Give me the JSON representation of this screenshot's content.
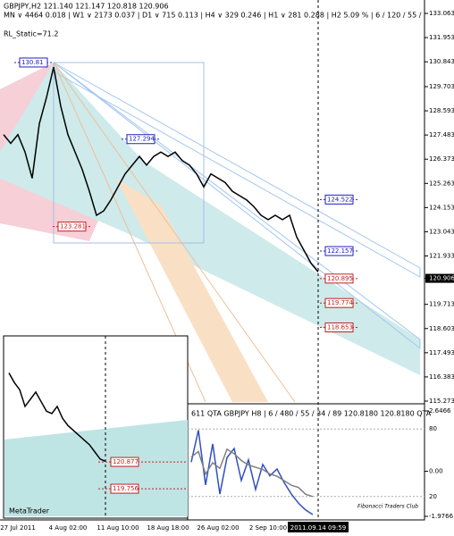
{
  "chart_data": [
    {
      "type": "line",
      "title": "GBPJPY,H2  121.140 121.147 120.818 120.906",
      "subtitle": "MN ∨ 4464  0.018 | W1 ∨ 2173  0.037 | D1 ∨ 715  0.113 | H4 ∨ 329  0.246 | H1 ∨ 281  0.288 | H2  5.09 % | 6 / 120 / 55 /",
      "annotation": "RL_Static=71.2",
      "categories": [
        null,
        null,
        "27 Jul 2011",
        null,
        null,
        null,
        null,
        null,
        null,
        "4 Aug 02:00",
        null,
        null,
        null,
        null,
        null,
        null,
        "11 Aug 10:00",
        null,
        null,
        null,
        null,
        null,
        null,
        "18 Aug 18:00",
        null,
        null,
        null,
        null,
        null,
        null,
        "26 Aug 02:00",
        null,
        null,
        null,
        null,
        null,
        null,
        "2 Sep 10:00",
        null,
        null,
        null,
        null,
        null,
        null,
        "2011.09.14 09:59"
      ],
      "series": [
        {
          "name": "GBPJPY",
          "color": "#000000",
          "values": [
            127.5,
            127.1,
            127.5,
            126.7,
            125.5,
            128.0,
            129.2,
            130.6,
            128.8,
            127.5,
            126.7,
            125.9,
            124.9,
            123.8,
            124.0,
            124.5,
            125.1,
            125.7,
            126.1,
            126.5,
            126.1,
            126.5,
            126.7,
            126.5,
            126.7,
            126.3,
            126.1,
            125.7,
            125.1,
            125.7,
            125.5,
            125.3,
            124.9,
            124.7,
            124.5,
            124.2,
            123.8,
            123.6,
            123.8,
            123.6,
            123.8,
            122.8,
            122.2,
            121.6,
            121.2
          ]
        }
      ],
      "levels": [
        {
          "value": 130.81,
          "color": "#2020c0"
        },
        {
          "value": 127.294,
          "color": "#2020c0"
        },
        {
          "value": 123.281,
          "color": "#c02020"
        },
        {
          "value": 124.522,
          "color": "#2020c0"
        },
        {
          "value": 122.157,
          "color": "#2020c0"
        },
        {
          "value": 120.895,
          "color": "#c02020"
        },
        {
          "value": 119.774,
          "color": "#c02020"
        },
        {
          "value": 118.653,
          "color": "#c02020"
        }
      ],
      "ylim": [
        115.273,
        133.063
      ],
      "yticks": [
        133.063,
        131.953,
        130.843,
        129.703,
        128.593,
        127.483,
        126.373,
        125.263,
        124.153,
        123.043,
        121.933,
        120.906,
        119.713,
        118.603,
        117.493,
        116.383,
        115.273
      ]
    },
    {
      "type": "line",
      "annotation": "MetaTrader",
      "series": [
        {
          "name": "GBPJPY",
          "color": "#000000",
          "values": [
            124.6,
            124.2,
            123.9,
            123.2,
            123.5,
            123.8,
            123.4,
            123.0,
            122.9,
            123.2,
            122.7,
            122.4,
            122.2,
            122.0,
            121.8,
            121.6,
            121.3,
            121.0,
            120.9
          ]
        }
      ],
      "levels": [
        {
          "value": 120.877,
          "color": "#c02020"
        },
        {
          "value": 119.756,
          "color": "#c02020"
        }
      ],
      "ylim": [
        118.6,
        126.0
      ]
    },
    {
      "type": "line",
      "title": "611  QTA  GBPJPY H8 | 6 / 480 / 55 / 34 / 89  120.8180  120.8180  QTA",
      "annotation": "Fibonacci Traders Club",
      "series": [
        {
          "name": "QTA",
          "color": "#3050c0",
          "values": [
            0.4,
            1.8,
            -0.6,
            1.2,
            -1.0,
            0.6,
            1.0,
            -0.4,
            0.5,
            -0.8,
            0.3,
            -0.2,
            0.1,
            -0.5,
            -1.0,
            -1.4,
            -1.7,
            -1.9
          ]
        },
        {
          "name": "RL",
          "color": "#808080",
          "axis": "y2",
          "values": [
            55,
            60,
            40,
            50,
            45,
            62,
            58,
            52,
            48,
            46,
            44,
            40,
            38,
            34,
            30,
            28,
            22,
            20
          ]
        }
      ],
      "ylim": [
        -1.9766,
        2.6466
      ],
      "yticks": [
        2.6466,
        {
          "value": 0,
          "label": "0.00"
        },
        -1.9766
      ],
      "y2lim": [
        0,
        100
      ],
      "y2ticks": [
        80,
        20
      ]
    }
  ]
}
